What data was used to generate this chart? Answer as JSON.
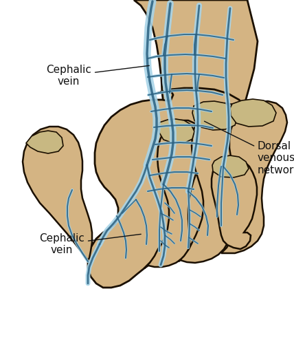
{
  "background_color": "#ffffff",
  "skin_color": "#d4b483",
  "skin_light": "#dcc08e",
  "outline_color": "#1a0f00",
  "vein_fill_color": "#a8d4e8",
  "vein_edge_color": "#2a6080",
  "nail_color": "#c8b882",
  "label1": "Cephalic\nvein",
  "label2": "Dorsal\nvenous\nnetwork",
  "label3": "Cephalic\nvein",
  "label_color": "#111111",
  "label_fontsize": 11,
  "figsize": [
    4.28,
    5.0
  ],
  "dpi": 100
}
